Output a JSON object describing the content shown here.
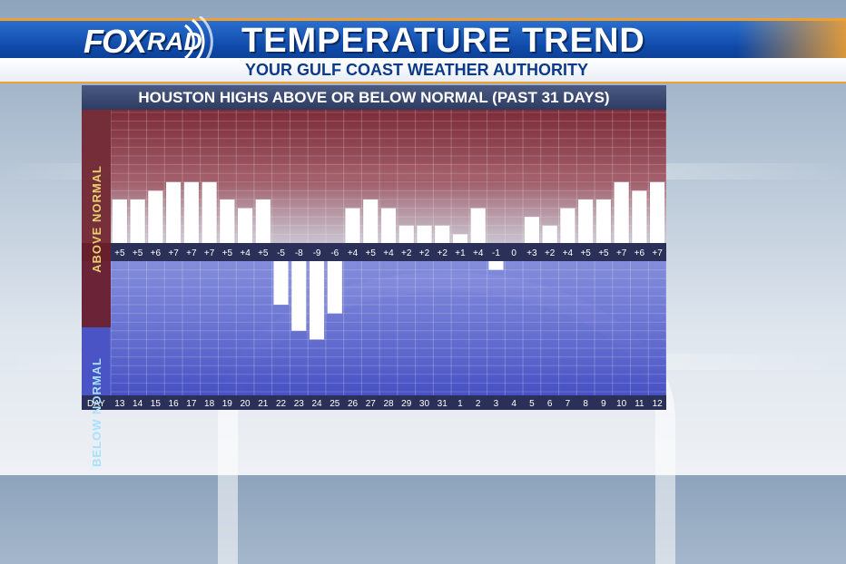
{
  "header": {
    "logo_fox": "FOX",
    "logo_rad": "RAD",
    "title": "TEMPERATURE TREND",
    "subtitle": "YOUR GULF COAST WEATHER AUTHORITY"
  },
  "panel": {
    "title": "HOUSTON HIGHS ABOVE OR BELOW NORMAL (PAST 31 DAYS)",
    "above_label": "ABOVE NORMAL",
    "below_label": "BELOW NORMAL",
    "day_label": "DAY"
  },
  "colors": {
    "above_zone": "#8e2e3a",
    "below_zone": "#4a58c8",
    "bar": "#ffffff"
  },
  "chart_data": {
    "type": "bar",
    "title": "HOUSTON HIGHS ABOVE OR BELOW NORMAL (PAST 31 DAYS)",
    "xlabel": "DAY",
    "ylabel": "",
    "ylim": [
      -10,
      14
    ],
    "grid": true,
    "categories": [
      "13",
      "14",
      "15",
      "16",
      "17",
      "18",
      "19",
      "20",
      "21",
      "22",
      "23",
      "24",
      "25",
      "26",
      "27",
      "28",
      "29",
      "30",
      "31",
      "1",
      "2",
      "3",
      "4",
      "5",
      "6",
      "7",
      "8",
      "9",
      "10",
      "11",
      "12"
    ],
    "values": [
      5,
      5,
      6,
      7,
      7,
      7,
      5,
      4,
      5,
      -5,
      -8,
      -9,
      -6,
      4,
      5,
      4,
      2,
      2,
      2,
      1,
      4,
      -1,
      0,
      3,
      2,
      4,
      5,
      5,
      7,
      6,
      7
    ],
    "value_labels": [
      "+5",
      "+5",
      "+6",
      "+7",
      "+7",
      "+7",
      "+5",
      "+4",
      "+5",
      "-5",
      "-8",
      "-9",
      "-6",
      "+4",
      "+5",
      "+4",
      "+2",
      "+2",
      "+2",
      "+1",
      "+4",
      "-1",
      "0",
      "+3",
      "+2",
      "+4",
      "+5",
      "+5",
      "+7",
      "+6",
      "+7"
    ]
  }
}
